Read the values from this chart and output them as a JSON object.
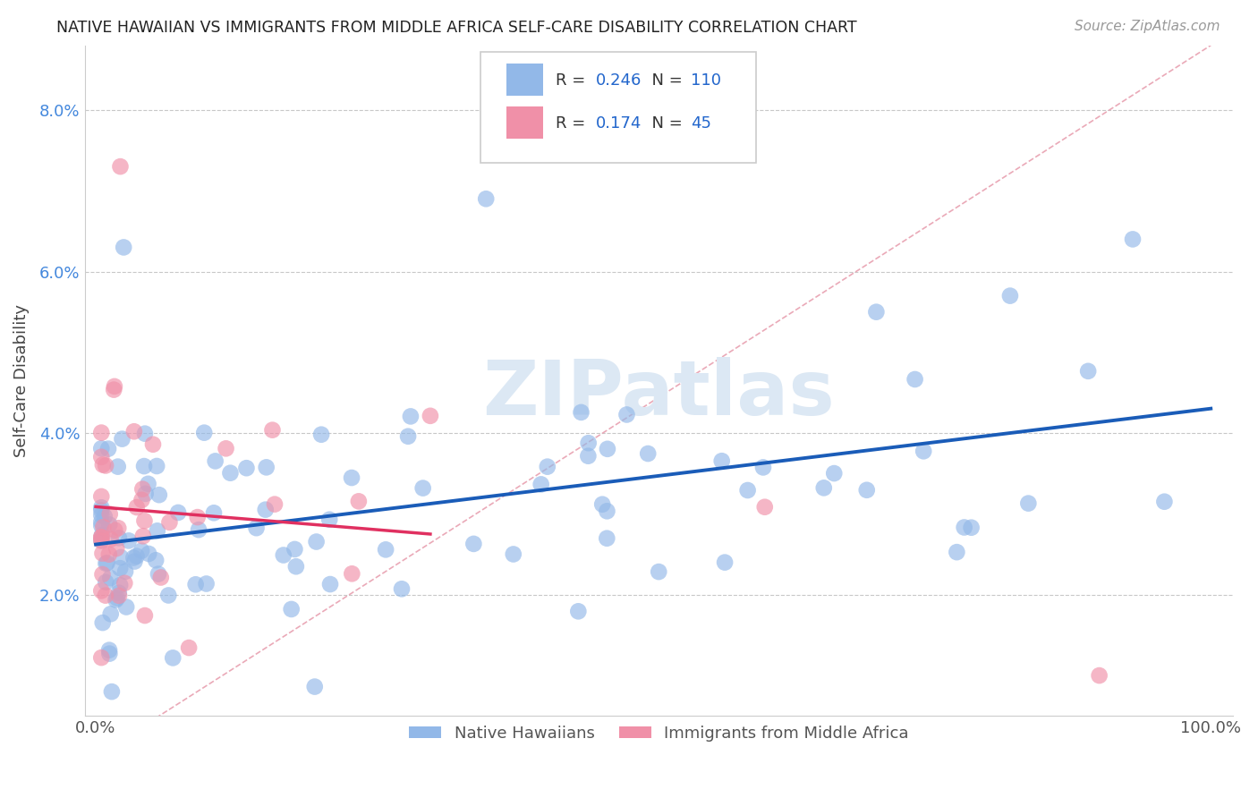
{
  "title": "NATIVE HAWAIIAN VS IMMIGRANTS FROM MIDDLE AFRICA SELF-CARE DISABILITY CORRELATION CHART",
  "source": "Source: ZipAtlas.com",
  "ylabel": "Self-Care Disability",
  "xlim": [
    -0.01,
    1.02
  ],
  "ylim": [
    0.005,
    0.088
  ],
  "xtick_vals": [
    0.0,
    1.0
  ],
  "xtick_labels": [
    "0.0%",
    "100.0%"
  ],
  "ytick_vals": [
    0.02,
    0.04,
    0.06,
    0.08
  ],
  "ytick_labels": [
    "2.0%",
    "4.0%",
    "6.0%",
    "8.0%"
  ],
  "watermark": "ZIPatlas",
  "blue_color": "#92b8e8",
  "pink_color": "#f090a8",
  "blue_line_color": "#1a5cb8",
  "pink_line_color": "#e03060",
  "diag_line_color": "#e8a0b0",
  "R_blue": 0.246,
  "N_blue": 110,
  "R_pink": 0.174,
  "N_pink": 45,
  "blue_label": "Native Hawaiians",
  "pink_label": "Immigrants from Middle Africa"
}
